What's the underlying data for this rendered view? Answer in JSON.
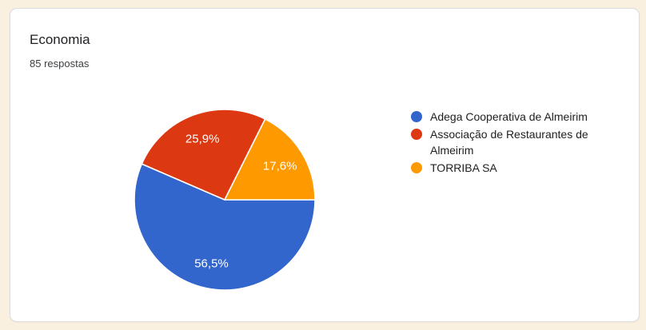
{
  "colors": {
    "page_background": "#f9f0e0",
    "card_background": "#ffffff",
    "card_border": "#dadce0",
    "title_text": "#202124",
    "slice_label_text": "#ffffff"
  },
  "chart_data": {
    "type": "pie",
    "title": "Economia",
    "subtitle": "85 respostas",
    "legend_position": "right",
    "start_angle": "east-clockwise",
    "slices": [
      {
        "label": "Adega Cooperativa de Almeirim",
        "value": 56.5,
        "display": "56,5%",
        "color": "#3366cc"
      },
      {
        "label": "Associação de Restaurantes de Almeirim",
        "value": 25.9,
        "display": "25,9%",
        "color": "#dc3912"
      },
      {
        "label": "TORRIBA SA",
        "value": 17.6,
        "display": "17,6%",
        "color": "#ff9900"
      }
    ]
  }
}
